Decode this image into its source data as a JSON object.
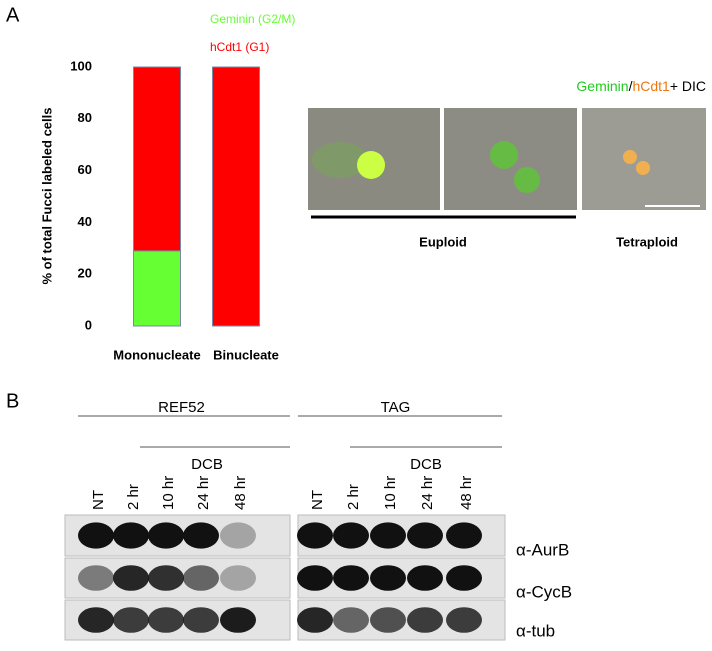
{
  "panel_labels": [
    "A",
    "B"
  ],
  "chart_data": {
    "type": "stacked-bar",
    "ylabel": "% of total Fucci labeled cells",
    "categories": [
      "Mononucleate",
      "Binucleate"
    ],
    "series": [
      {
        "name": "Geminin (G2/M)",
        "color": "#66ff33",
        "values": [
          29,
          0
        ]
      },
      {
        "name": "hCdt1 (G1)",
        "color": "#ff0000",
        "values": [
          71,
          100
        ]
      }
    ],
    "ylim": [
      0,
      100
    ],
    "yticks": [
      0,
      20,
      40,
      60,
      80,
      100
    ],
    "grid": false
  },
  "microscopy": {
    "legend": [
      {
        "text": "Geminin",
        "color": "#22cc22"
      },
      {
        "text": "/",
        "color": "#000000"
      },
      {
        "text": "hCdt1",
        "color": "#ee7711"
      },
      {
        "text": "+ DIC",
        "color": "#000000"
      }
    ],
    "groups": [
      "Euploid",
      "Tetraploid"
    ]
  },
  "blot": {
    "cell_lines": [
      {
        "name": "REF52",
        "treatment": "DCB",
        "lanes": [
          "NT",
          "2 hr",
          "10 hr",
          "24 hr",
          "48 hr"
        ]
      },
      {
        "name": "TAG",
        "treatment": "DCB",
        "lanes": [
          "NT",
          "2 hr",
          "10 hr",
          "24 hr",
          "48 hr"
        ]
      }
    ],
    "antibodies": [
      "α-AurB",
      "α-CycB",
      "α-tub"
    ]
  }
}
